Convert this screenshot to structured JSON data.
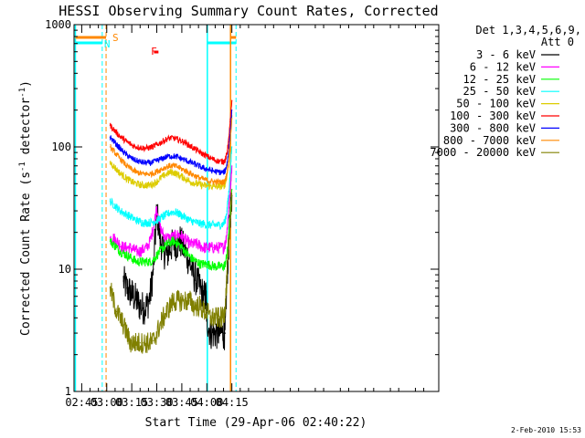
{
  "chart_data": {
    "type": "line",
    "title": "HESSI Observing Summary Count Rates, Corrected",
    "xlabel": "Start Time (29-Apr-06 02:40:22)",
    "ylabel_main": "Corrected Count Rate (s",
    "ylabel_sup1": "-1",
    "ylabel_mid": " detector",
    "ylabel_sup2": "-1",
    "ylabel_end": ")",
    "y_scale": "log",
    "ylim": [
      1,
      1000
    ],
    "xlim_minutes": [
      40.4,
      259
    ],
    "x_ticks": [
      {
        "label": "02:45",
        "minute": 45
      },
      {
        "label": "03:00",
        "minute": 60
      },
      {
        "label": "03:15",
        "minute": 75
      },
      {
        "label": "03:30",
        "minute": 90
      },
      {
        "label": "03:45",
        "minute": 105
      },
      {
        "label": "04:00",
        "minute": 120
      },
      {
        "label": "04:15",
        "minute": 135
      }
    ],
    "y_ticks": [
      {
        "label": "1",
        "value": 1
      },
      {
        "label": "10",
        "value": 10
      },
      {
        "label": "100",
        "value": 100
      },
      {
        "label": "1000",
        "value": 1000
      }
    ],
    "legend": {
      "placement": "top-right",
      "header1": "Det 1,3,4,5,6,9,",
      "header2": "Att 0"
    },
    "series": [
      {
        "name": "3 - 6 keV",
        "color": "#000000",
        "x": [
          62,
          64,
          66,
          68,
          70,
          72,
          74,
          76,
          78,
          80,
          82,
          84,
          86,
          88,
          90,
          92,
          94,
          96,
          98,
          100,
          102,
          104,
          106,
          108,
          110,
          112,
          114,
          116,
          118,
          119.5,
          120,
          122,
          124,
          126,
          128,
          130,
          131,
          132,
          133,
          134,
          135
        ],
        "y": [
          null,
          null,
          null,
          null,
          8,
          7,
          6.5,
          6,
          5.5,
          5,
          4.8,
          5,
          6,
          10,
          30,
          18,
          14,
          13,
          15,
          16,
          16,
          17,
          15,
          13,
          11,
          9,
          8,
          7,
          6,
          6,
          4,
          3,
          3,
          3,
          3,
          3,
          3,
          8,
          15,
          28,
          40
        ]
      },
      {
        "name": "6 - 12 keV",
        "color": "#ff00ff",
        "x": [
          62,
          64,
          66,
          68,
          70,
          72,
          74,
          76,
          78,
          80,
          82,
          84,
          86,
          88,
          90,
          92,
          94,
          96,
          98,
          100,
          102,
          104,
          106,
          108,
          110,
          112,
          114,
          116,
          118,
          120,
          122,
          124,
          126,
          128,
          130,
          131,
          132,
          133,
          134,
          135
        ],
        "y": [
          18,
          18,
          17,
          16,
          15,
          15,
          15,
          14.5,
          14,
          14,
          14.5,
          15,
          17,
          22,
          32,
          22,
          19,
          18,
          18,
          18.5,
          19,
          19,
          18,
          17,
          16,
          16,
          16,
          15.5,
          15,
          15,
          15,
          15,
          15,
          15,
          15,
          16,
          20,
          30,
          45,
          70
        ]
      },
      {
        "name": "12 - 25 keV",
        "color": "#00ff00",
        "x": [
          62,
          64,
          66,
          68,
          70,
          72,
          74,
          76,
          78,
          80,
          82,
          84,
          86,
          88,
          90,
          92,
          94,
          96,
          98,
          100,
          102,
          104,
          106,
          108,
          110,
          112,
          114,
          116,
          118,
          120,
          122,
          124,
          126,
          128,
          130,
          131,
          132,
          133,
          134,
          135
        ],
        "y": [
          17,
          16,
          15,
          14,
          13.5,
          13,
          12.5,
          12,
          11.5,
          11.5,
          11.5,
          11.5,
          11.5,
          12,
          13,
          14,
          15,
          16,
          16.5,
          17,
          16.5,
          15.5,
          14.5,
          13.5,
          12.5,
          12,
          11.5,
          11,
          11,
          11,
          10.8,
          10.6,
          10.5,
          10.5,
          10.5,
          11,
          13,
          18,
          28,
          45
        ]
      },
      {
        "name": "25 - 50 keV",
        "color": "#00ffff",
        "x": [
          62,
          64,
          66,
          68,
          70,
          72,
          74,
          76,
          78,
          80,
          82,
          84,
          86,
          88,
          90,
          92,
          94,
          96,
          98,
          100,
          102,
          104,
          106,
          108,
          110,
          112,
          114,
          116,
          118,
          120,
          122,
          124,
          126,
          128,
          130,
          131,
          132,
          133,
          134,
          135
        ],
        "y": [
          36,
          34,
          32,
          30,
          29,
          28,
          27,
          26,
          25,
          24.5,
          24,
          24,
          24,
          24.5,
          25,
          26,
          27,
          28,
          29,
          29.5,
          29,
          28,
          27,
          26,
          25,
          24.5,
          24,
          23.5,
          23.5,
          23,
          23,
          23,
          23,
          23,
          23.5,
          25,
          30,
          40,
          60,
          100
        ]
      },
      {
        "name": "50 - 100 keV",
        "color": "#ddcc00",
        "x": [
          62,
          64,
          66,
          68,
          70,
          72,
          74,
          76,
          78,
          80,
          82,
          84,
          86,
          88,
          90,
          92,
          94,
          96,
          98,
          100,
          102,
          104,
          106,
          108,
          110,
          112,
          114,
          116,
          118,
          120,
          122,
          124,
          126,
          128,
          130,
          131,
          132,
          133,
          134,
          135
        ],
        "y": [
          75,
          70,
          65,
          61,
          58,
          55,
          53,
          51,
          50,
          49,
          48.5,
          48.5,
          49,
          50,
          52,
          55,
          58,
          60,
          62,
          62,
          60,
          58,
          56,
          54,
          52,
          51,
          50,
          49,
          48.5,
          48,
          48,
          47.5,
          47.5,
          47.5,
          48,
          50,
          58,
          75,
          110,
          180
        ]
      },
      {
        "name": "100 - 300 keV",
        "color": "#ff0000",
        "x": [
          62,
          64,
          66,
          68,
          70,
          72,
          74,
          76,
          78,
          80,
          82,
          84,
          86,
          88,
          90,
          92,
          94,
          96,
          98,
          100,
          102,
          104,
          106,
          108,
          110,
          112,
          114,
          116,
          118,
          120,
          122,
          124,
          126,
          128,
          130,
          131,
          132,
          133,
          134,
          135
        ],
        "y": [
          150,
          140,
          130,
          122,
          116,
          110,
          106,
          102,
          100,
          99,
          98,
          98,
          99,
          101,
          104,
          108,
          112,
          116,
          118,
          118,
          116,
          113,
          110,
          106,
          102,
          98,
          94,
          90,
          87,
          84,
          81,
          79,
          77,
          76,
          76,
          78,
          88,
          110,
          160,
          240
        ]
      },
      {
        "name": "300 - 800 keV",
        "color": "#0000ff",
        "x": [
          62,
          64,
          66,
          68,
          70,
          72,
          74,
          76,
          78,
          80,
          82,
          84,
          86,
          88,
          90,
          92,
          94,
          96,
          98,
          100,
          102,
          104,
          106,
          108,
          110,
          112,
          114,
          116,
          118,
          120,
          122,
          124,
          126,
          128,
          130,
          131,
          132,
          133,
          134,
          135
        ],
        "y": [
          120,
          112,
          104,
          97,
          91,
          86,
          82,
          79,
          77,
          75.5,
          74.5,
          74,
          74,
          75,
          77,
          79,
          81,
          83,
          84,
          84,
          83,
          81,
          79,
          77,
          75,
          73,
          71,
          69,
          67,
          66,
          64.5,
          63.5,
          62.5,
          62,
          62,
          64,
          72,
          90,
          130,
          200
        ]
      },
      {
        "name": "800 - 7000 keV",
        "color": "#ff8800",
        "x": [
          62,
          64,
          66,
          68,
          70,
          72,
          74,
          76,
          78,
          80,
          82,
          84,
          86,
          88,
          90,
          92,
          94,
          96,
          98,
          100,
          102,
          104,
          106,
          108,
          110,
          112,
          114,
          116,
          118,
          120,
          122,
          124,
          126,
          128,
          130,
          131,
          132,
          133,
          134,
          135
        ],
        "y": [
          100,
          93,
          86,
          80,
          75,
          70,
          67,
          64,
          62,
          61,
          60,
          60,
          60,
          61,
          63,
          65,
          67,
          69,
          70,
          70,
          69,
          67,
          65,
          63,
          61,
          59,
          57,
          55.5,
          54.5,
          53.5,
          52.5,
          52,
          51.5,
          51.5,
          51.5,
          53,
          60,
          75,
          110,
          170
        ]
      },
      {
        "name": "7000 - 20000 keV",
        "color": "#808000",
        "x": [
          62,
          64,
          66,
          68,
          70,
          72,
          74,
          76,
          78,
          80,
          82,
          84,
          86,
          88,
          90,
          92,
          94,
          96,
          98,
          100,
          102,
          104,
          106,
          108,
          110,
          112,
          114,
          116,
          118,
          120,
          122,
          124,
          126,
          128,
          130,
          131,
          132,
          133,
          134,
          135
        ],
        "y": [
          7,
          5.5,
          4.5,
          4,
          3.5,
          3,
          2.5,
          2.5,
          2.5,
          2.5,
          2.5,
          2.5,
          2.5,
          2.6,
          3,
          3.5,
          4,
          4.5,
          5,
          5.5,
          5.5,
          5.5,
          5.5,
          5.5,
          5.5,
          5,
          5,
          5,
          4.5,
          4.5,
          4,
          4,
          4,
          4,
          4,
          5,
          8,
          15,
          25,
          40
        ]
      }
    ],
    "markers": [
      {
        "label": "S",
        "color": "#ff8800"
      },
      {
        "label": "N",
        "color": "#00ffff"
      },
      {
        "label": "F",
        "color": "#ff0000"
      }
    ],
    "footer_timestamp": "2-Feb-2010 15:53"
  }
}
